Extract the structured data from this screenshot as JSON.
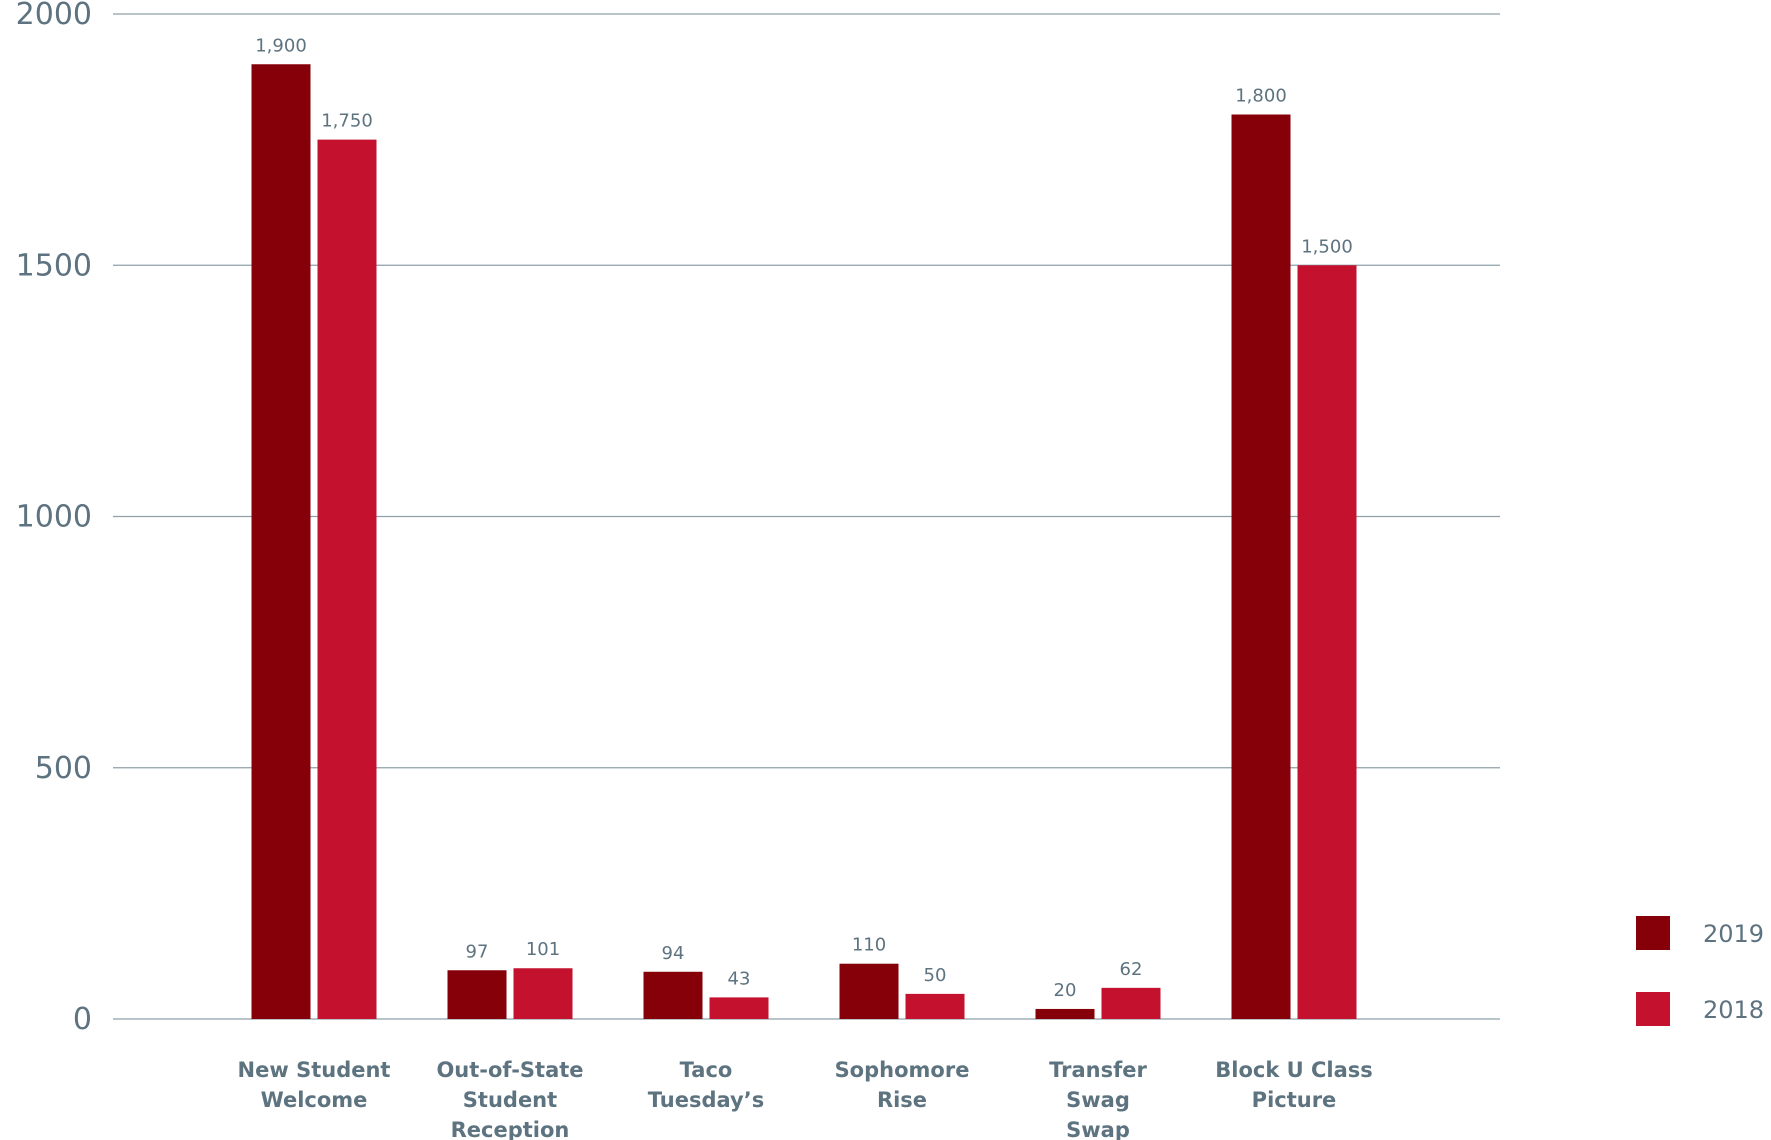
{
  "chart_data": {
    "type": "bar",
    "title": "",
    "xlabel": "",
    "ylabel": "",
    "ylim": [
      0,
      2000
    ],
    "yticks": [
      "0",
      "500",
      "1000",
      "1500",
      "2000"
    ],
    "grid": true,
    "legend_position": "bottom-right",
    "categories": [
      [
        "New Student",
        "Welcome"
      ],
      [
        "Out-of-State",
        "Student",
        "Reception"
      ],
      [
        "Taco",
        "Tuesday’s"
      ],
      [
        "Sophomore",
        "Rise"
      ],
      [
        "Transfer",
        "Swag",
        "Swap"
      ],
      [
        "Block U Class",
        "Picture"
      ]
    ],
    "series": [
      {
        "name": "2019",
        "color": "#850008",
        "values": [
          1900,
          97,
          94,
          110,
          20,
          1800
        ],
        "labels": [
          "1,900",
          "97",
          "94",
          "110",
          "20",
          "1,800"
        ]
      },
      {
        "name": "2018",
        "color": "#c3112e",
        "values": [
          1750,
          101,
          43,
          50,
          62,
          1500
        ],
        "labels": [
          "1,750",
          "101",
          "43",
          "50",
          "62",
          "1,500"
        ]
      }
    ]
  }
}
